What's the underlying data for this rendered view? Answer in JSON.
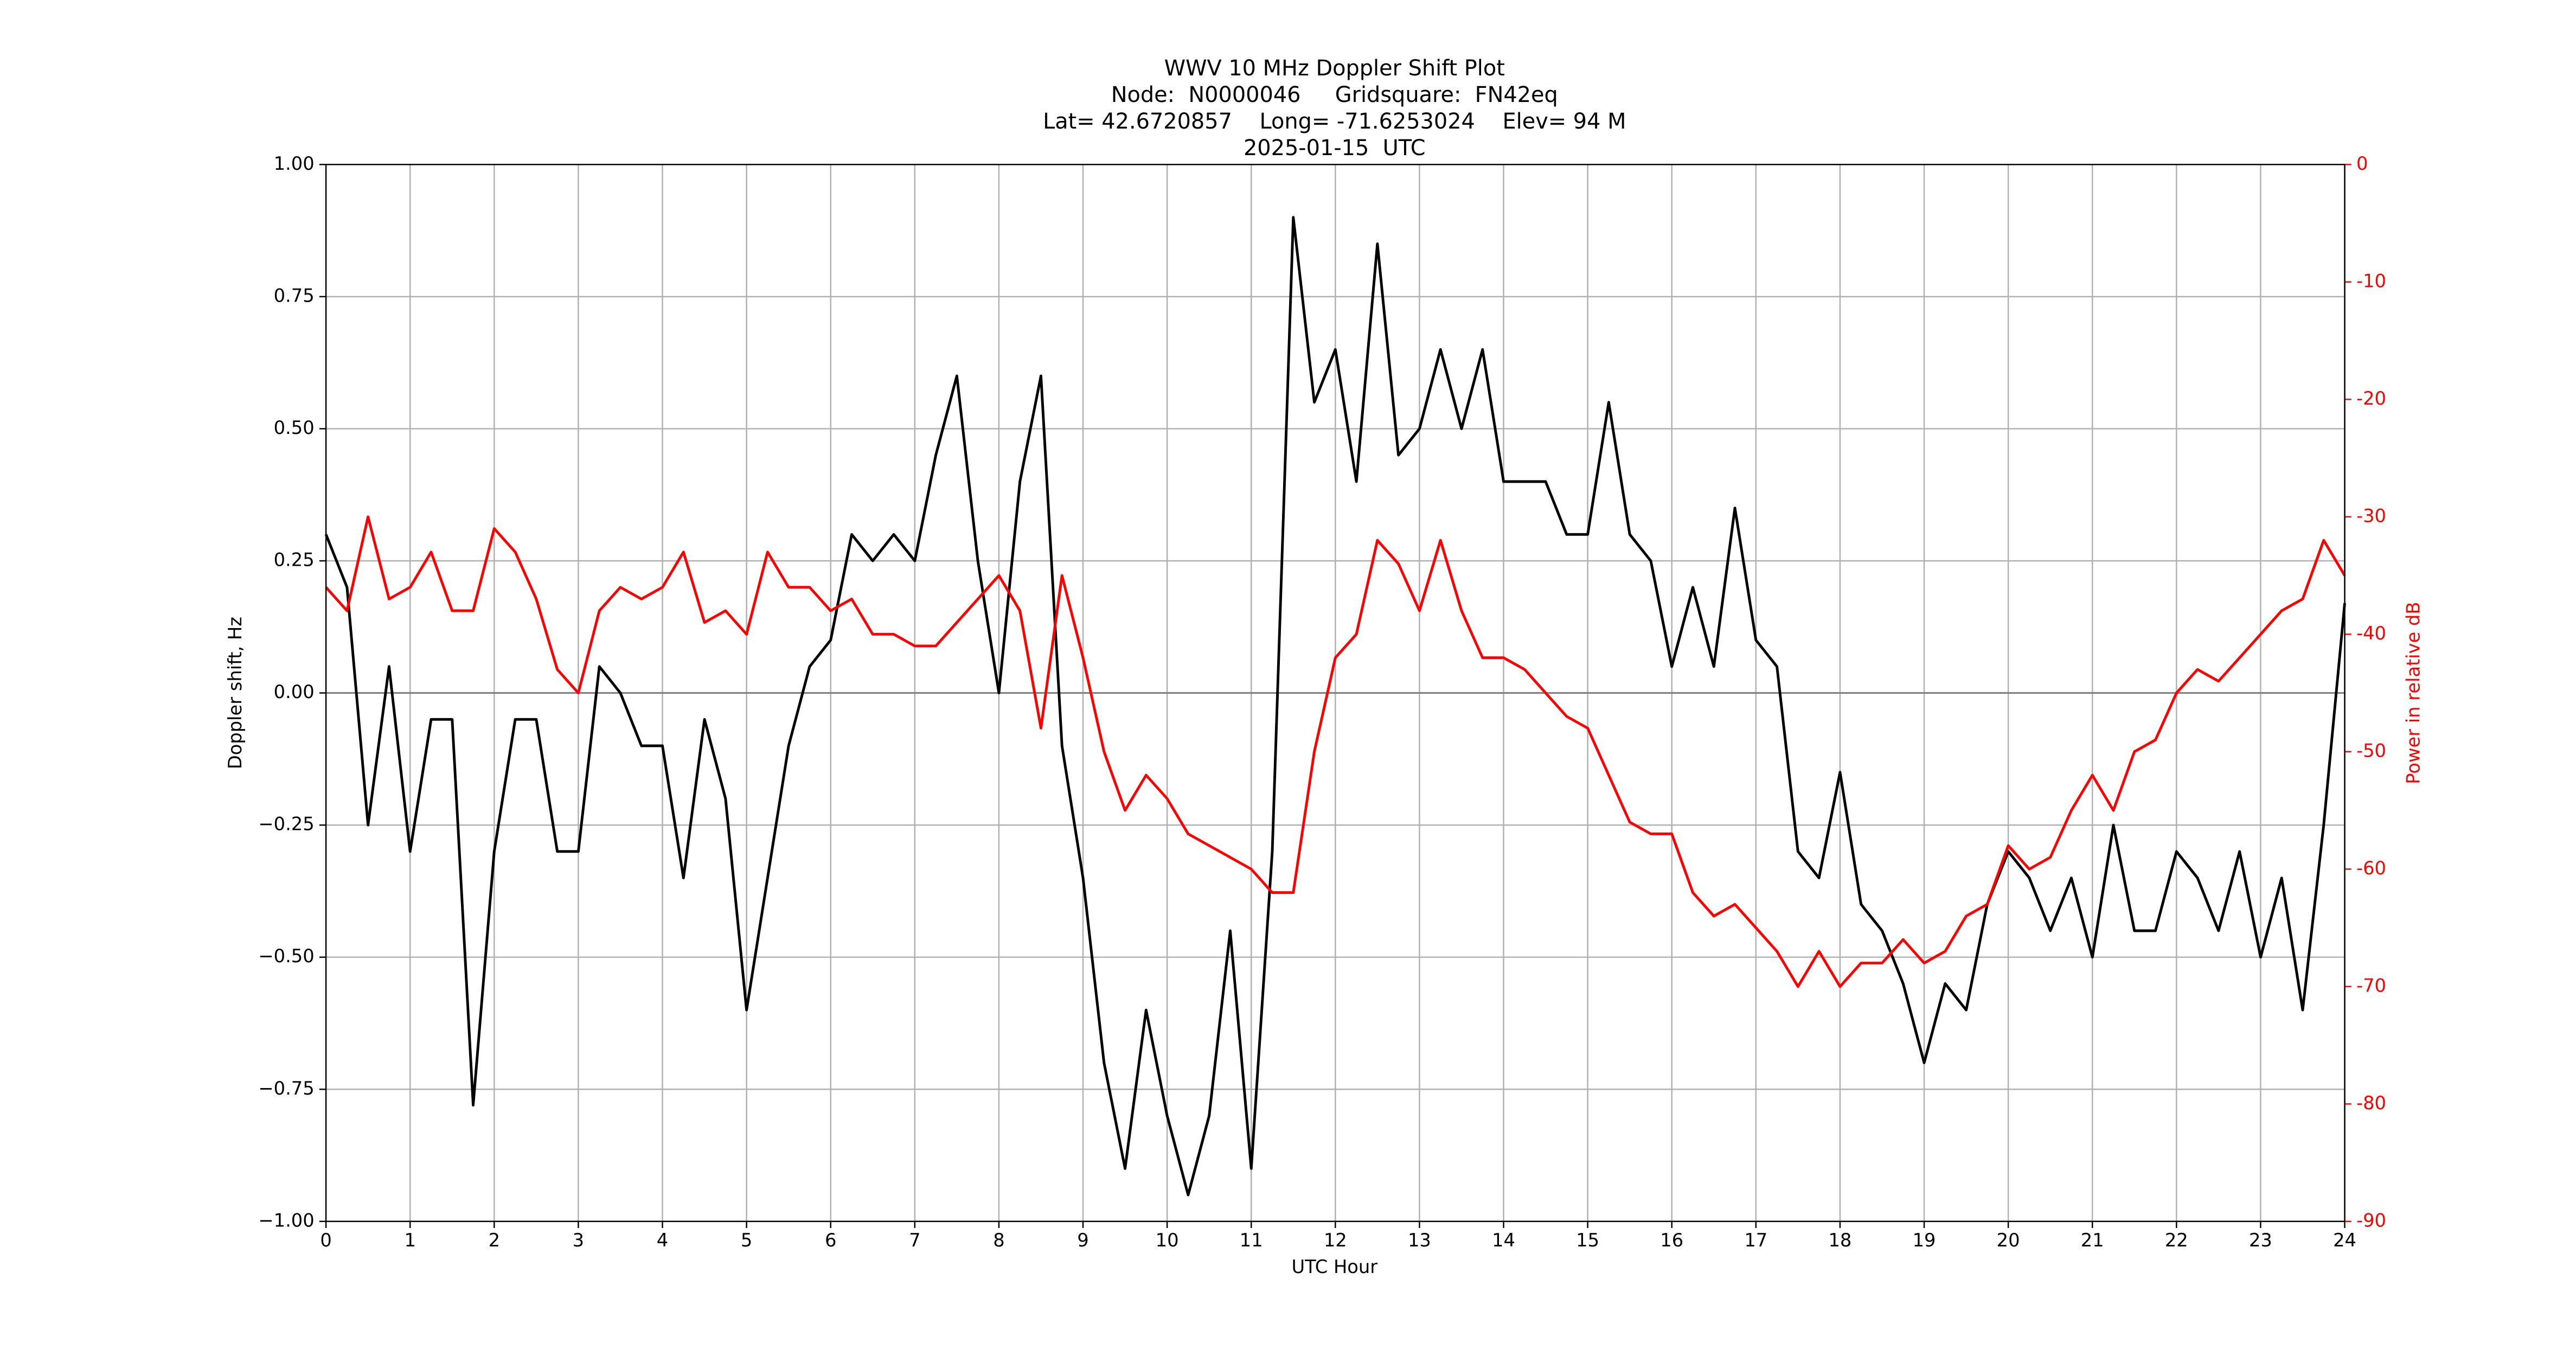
{
  "chart_data": {
    "type": "line",
    "title": [
      "WWV 10 MHz Doppler Shift Plot",
      "Node:  N0000046     Gridsquare:  FN42eq",
      "Lat= 42.6720857    Long= -71.6253024    Elev= 94 M",
      "2025-01-15  UTC"
    ],
    "xlabel": "UTC Hour",
    "ylabel": "Doppler shift, Hz",
    "y2label": "Power in relative dB",
    "y2color": "#ff0000",
    "x": [
      0,
      0.25,
      0.5,
      0.75,
      1,
      1.25,
      1.5,
      1.75,
      2,
      2.25,
      2.5,
      2.75,
      3,
      3.25,
      3.5,
      3.75,
      4,
      4.25,
      4.5,
      4.75,
      5,
      5.25,
      5.5,
      5.75,
      6,
      6.25,
      6.5,
      6.75,
      7,
      7.25,
      7.5,
      7.75,
      8,
      8.25,
      8.5,
      8.75,
      9,
      9.25,
      9.5,
      9.75,
      10,
      10.25,
      10.5,
      10.75,
      11,
      11.25,
      11.5,
      11.75,
      12,
      12.25,
      12.5,
      12.75,
      13,
      13.25,
      13.5,
      13.75,
      14,
      14.25,
      14.5,
      14.75,
      15,
      15.25,
      15.5,
      15.75,
      16,
      16.25,
      16.5,
      16.75,
      17,
      17.25,
      17.5,
      17.75,
      18,
      18.25,
      18.5,
      18.75,
      19,
      19.25,
      19.5,
      19.75,
      20,
      20.25,
      20.5,
      20.75,
      21,
      21.25,
      21.5,
      21.75,
      22,
      22.25,
      22.5,
      22.75,
      23,
      23.25,
      23.5,
      23.75,
      24
    ],
    "series": [
      {
        "name": "Doppler shift",
        "color": "#000000",
        "values": [
          0.3,
          0.2,
          -0.25,
          0.05,
          -0.3,
          -0.05,
          -0.05,
          -0.78,
          -0.3,
          -0.05,
          -0.05,
          -0.3,
          -0.3,
          0.05,
          0.0,
          -0.1,
          -0.1,
          -0.35,
          -0.05,
          -0.2,
          -0.6,
          -0.35,
          -0.1,
          0.05,
          0.1,
          0.3,
          0.25,
          0.3,
          0.25,
          0.45,
          0.6,
          0.25,
          0.0,
          0.4,
          0.6,
          -0.1,
          -0.35,
          -0.7,
          -0.9,
          -0.6,
          -0.8,
          -0.95,
          -0.8,
          -0.45,
          -0.9,
          -0.3,
          0.9,
          0.55,
          0.65,
          0.4,
          0.85,
          0.45,
          0.5,
          0.65,
          0.5,
          0.65,
          0.4,
          0.4,
          0.4,
          0.3,
          0.3,
          0.55,
          0.3,
          0.25,
          0.05,
          0.2,
          0.05,
          0.35,
          0.1,
          0.05,
          -0.3,
          -0.35,
          -0.15,
          -0.4,
          -0.45,
          -0.55,
          -0.7,
          -0.55,
          -0.6,
          -0.4,
          -0.3,
          -0.35,
          -0.45,
          -0.35,
          -0.5,
          -0.25,
          -0.45,
          -0.45,
          -0.3,
          -0.35,
          -0.45,
          -0.3,
          -0.5,
          -0.35,
          -0.6,
          -0.25,
          0.17
        ]
      },
      {
        "name": "Power",
        "color": "#ff0000",
        "axis": "y2",
        "values": [
          -36,
          -38,
          -30,
          -37,
          -36,
          -33,
          -38,
          -38,
          -31,
          -33,
          -37,
          -43,
          -45,
          -38,
          -36,
          -37,
          -36,
          -33,
          -39,
          -38,
          -40,
          -33,
          -36,
          -36,
          -38,
          -37,
          -40,
          -40,
          -41,
          -41,
          -39,
          -37,
          -35,
          -38,
          -48,
          -35,
          -42,
          -50,
          -55,
          -52,
          -54,
          -57,
          -58,
          -59,
          -60,
          -62,
          -62,
          -50,
          -42,
          -40,
          -32,
          -34,
          -38,
          -32,
          -38,
          -42,
          -42,
          -43,
          -45,
          -47,
          -48,
          -52,
          -56,
          -57,
          -57,
          -62,
          -64,
          -63,
          -65,
          -67,
          -70,
          -67,
          -70,
          -68,
          -68,
          -66,
          -68,
          -67,
          -64,
          -63,
          -58,
          -60,
          -59,
          -55,
          -52,
          -55,
          -50,
          -49,
          -45,
          -43,
          -44,
          -42,
          -40,
          -38,
          -37,
          -32,
          -35
        ]
      }
    ],
    "xlim": [
      0,
      24
    ],
    "xticks": [
      0,
      1,
      2,
      3,
      4,
      5,
      6,
      7,
      8,
      9,
      10,
      11,
      12,
      13,
      14,
      15,
      16,
      17,
      18,
      19,
      20,
      21,
      22,
      23,
      24
    ],
    "ylim": [
      -1,
      1
    ],
    "yticks": [
      {
        "value": -1,
        "label": "−1.00"
      },
      {
        "value": -0.75,
        "label": "−0.75"
      },
      {
        "value": -0.5,
        "label": "−0.50"
      },
      {
        "value": -0.25,
        "label": "−0.25"
      },
      {
        "value": 0,
        "label": "0.00"
      },
      {
        "value": 0.25,
        "label": "0.25"
      },
      {
        "value": 0.5,
        "label": "0.50"
      },
      {
        "value": 0.75,
        "label": "0.75"
      },
      {
        "value": 1,
        "label": "1.00"
      }
    ],
    "y2lim": [
      -90,
      0
    ],
    "y2ticks": [
      -90,
      -80,
      -70,
      -60,
      -50,
      -40,
      -30,
      -20,
      -10,
      0
    ],
    "grid": true
  }
}
